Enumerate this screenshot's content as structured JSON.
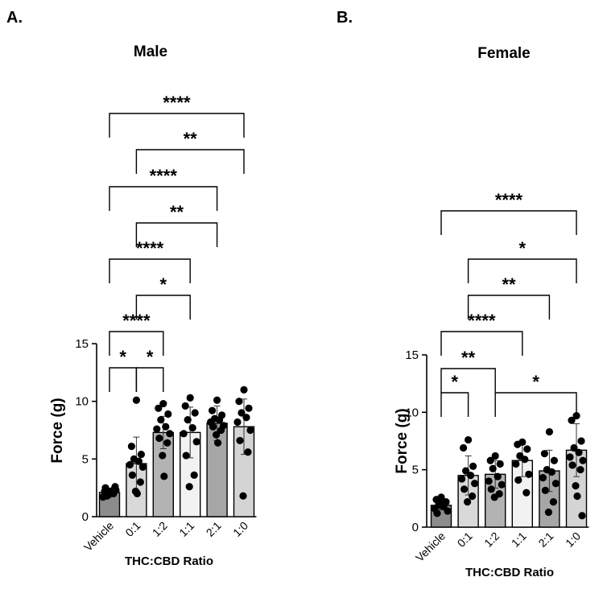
{
  "chart_data": [
    {
      "type": "bar",
      "panel_label": "A.",
      "title": "Male",
      "xlabel": "THC:CBD Ratio",
      "ylabel": "Force (g)",
      "ylim": [
        0,
        15
      ],
      "yticks": [
        "0",
        "5",
        "10",
        "15"
      ],
      "categories": [
        "Vehicle",
        "0:1",
        "1:2",
        "1:1",
        "2:1",
        "1:0"
      ],
      "bar_colors": [
        "#8c8c8c",
        "#d9d9d9",
        "#b3b3b3",
        "#f2f2f2",
        "#a6a6a6",
        "#d4d4d4"
      ],
      "values": [
        2.1,
        4.6,
        7.3,
        7.3,
        8.1,
        7.8
      ],
      "errors": [
        0.3,
        2.3,
        1.4,
        2.2,
        1.5,
        2.4
      ],
      "points": [
        [
          2.0,
          2.2,
          2.4,
          1.8,
          2.1,
          1.7,
          2.3,
          2.5,
          2.0,
          1.9,
          2.2,
          2.6
        ],
        [
          10.1,
          6.1,
          5.4,
          5.0,
          4.8,
          4.5,
          4.3,
          3.6,
          3.0,
          2.2,
          2.0
        ],
        [
          9.8,
          9.4,
          8.9,
          8.4,
          7.8,
          7.6,
          7.2,
          6.8,
          6.4,
          5.3,
          3.5
        ],
        [
          10.3,
          9.6,
          9.0,
          8.4,
          7.7,
          7.2,
          6.5,
          5.3,
          3.6,
          2.6
        ],
        [
          10.1,
          9.2,
          8.8,
          8.5,
          8.4,
          8.2,
          7.9,
          7.8,
          7.5,
          7.1,
          6.4
        ],
        [
          11.0,
          10.0,
          9.4,
          9.0,
          8.6,
          8.2,
          7.5,
          6.6,
          5.6,
          1.8
        ]
      ],
      "comparisons": [
        {
          "from": 0,
          "to": 1,
          "label": "*"
        },
        {
          "from": 1,
          "to": 2,
          "label": "*"
        },
        {
          "from": 0,
          "to": 2,
          "label": "****"
        },
        {
          "from": 1,
          "to": 3,
          "label": "*"
        },
        {
          "from": 0,
          "to": 3,
          "label": "****"
        },
        {
          "from": 1,
          "to": 4,
          "label": "**"
        },
        {
          "from": 0,
          "to": 4,
          "label": "****"
        },
        {
          "from": 1,
          "to": 5,
          "label": "**"
        },
        {
          "from": 0,
          "to": 5,
          "label": "****"
        }
      ]
    },
    {
      "type": "bar",
      "panel_label": "B.",
      "title": "Female",
      "xlabel": "THC:CBD Ratio",
      "ylabel": "Force (g)",
      "ylim": [
        0,
        15
      ],
      "yticks": [
        "0",
        "5",
        "10",
        "15"
      ],
      "categories": [
        "Vehicle",
        "0:1",
        "1:2",
        "1:1",
        "2:1",
        "1:0"
      ],
      "bar_colors": [
        "#8c8c8c",
        "#d9d9d9",
        "#b3b3b3",
        "#f2f2f2",
        "#a6a6a6",
        "#d4d4d4"
      ],
      "values": [
        1.9,
        4.5,
        4.6,
        5.8,
        4.9,
        6.7
      ],
      "errors": [
        0.4,
        1.7,
        1.2,
        1.4,
        1.8,
        2.3
      ],
      "points": [
        [
          2.6,
          2.4,
          2.2,
          2.0,
          1.8,
          1.6,
          1.4,
          1.2,
          2.1,
          1.9,
          2.3
        ],
        [
          7.6,
          6.9,
          5.3,
          4.9,
          4.5,
          4.2,
          3.8,
          3.3,
          2.7,
          2.2
        ],
        [
          6.2,
          5.8,
          5.5,
          5.1,
          4.4,
          4.0,
          3.7,
          3.3,
          2.9,
          2.6
        ],
        [
          7.4,
          7.2,
          6.8,
          6.2,
          5.9,
          5.5,
          4.6,
          4.1,
          3.0
        ],
        [
          8.3,
          6.4,
          5.8,
          5.0,
          4.8,
          4.3,
          3.8,
          3.2,
          2.2,
          1.3
        ],
        [
          9.7,
          9.3,
          7.5,
          6.9,
          6.5,
          6.1,
          5.8,
          5.4,
          5.0,
          3.6,
          2.7,
          1.0
        ]
      ],
      "comparisons": [
        {
          "from": 0,
          "to": 1,
          "label": "*"
        },
        {
          "from": 0,
          "to": 2,
          "label": "**"
        },
        {
          "from": 2,
          "to": 5,
          "label": "*"
        },
        {
          "from": 0,
          "to": 3,
          "label": "****"
        },
        {
          "from": 1,
          "to": 4,
          "label": "**"
        },
        {
          "from": 1,
          "to": 5,
          "label": "*"
        },
        {
          "from": 0,
          "to": 5,
          "label": "****"
        }
      ]
    }
  ]
}
